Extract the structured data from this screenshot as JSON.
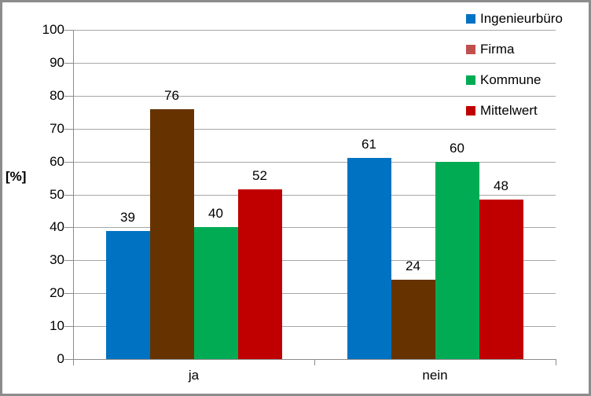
{
  "chart_data": {
    "type": "bar",
    "title": "",
    "categories": [
      "ja",
      "nein"
    ],
    "series": [
      {
        "name": "Ingenieurbüro",
        "color": "#0072C2",
        "values": [
          39,
          61
        ],
        "labels": [
          "39",
          "61"
        ]
      },
      {
        "name": "Firma",
        "color": "#663300",
        "legend_color": "#C0504D",
        "values": [
          76,
          24
        ],
        "labels": [
          "76",
          "24"
        ]
      },
      {
        "name": "Kommune",
        "color": "#00AB54",
        "values": [
          40,
          60
        ],
        "labels": [
          "40",
          "60"
        ]
      },
      {
        "name": "Mittelwert",
        "color": "#C00000",
        "values": [
          51.67,
          48.33
        ],
        "labels": [
          "52",
          "48"
        ]
      }
    ],
    "ylabel": "[%]",
    "xlabel": "",
    "ylim": [
      0,
      100
    ],
    "ytick_step": 10,
    "ytick_labels": [
      "0",
      "10",
      "20",
      "30",
      "40",
      "50",
      "60",
      "70",
      "80",
      "90",
      "100"
    ],
    "grid": true,
    "legend_position": "upper-right"
  },
  "colors": {
    "background": "#FFFFFF",
    "border": "#8C8C8C",
    "axis": "#8C8C8C",
    "gridline": "#A6A6A6",
    "text": "#000000"
  }
}
